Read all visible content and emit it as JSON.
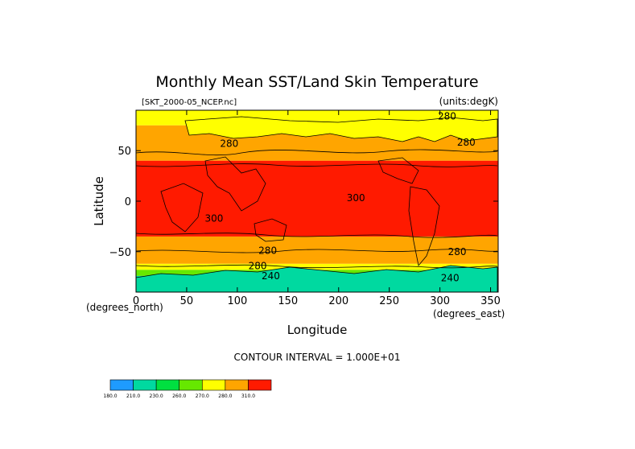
{
  "chart_data": {
    "type": "heatmap",
    "title": "Monthly Mean SST/Land Skin Temperature",
    "subtitle_left": "[SKT_2000-05_NCEP.nc]",
    "subtitle_right": "(units:degK)",
    "xlabel": "Longitude",
    "ylabel": "Latitude",
    "x_units": "(degrees_east)",
    "y_units": "(degrees_north)",
    "xlim": [
      0,
      357.5
    ],
    "ylim": [
      -90,
      90
    ],
    "x_ticks": [
      0,
      50,
      100,
      150,
      200,
      250,
      300,
      350
    ],
    "y_ticks": [
      -50,
      0,
      50
    ],
    "footer": "CONTOUR INTERVAL = 1.000E+01",
    "contour_labels": [
      {
        "text": "280",
        "x": 307,
        "y": 84
      },
      {
        "text": "280",
        "x": 326,
        "y": 58
      },
      {
        "text": "280",
        "x": 92,
        "y": 57
      },
      {
        "text": "300",
        "x": 217,
        "y": 3
      },
      {
        "text": "300",
        "x": 77,
        "y": -17
      },
      {
        "text": "280",
        "x": 130,
        "y": -49
      },
      {
        "text": "280",
        "x": 317,
        "y": -50
      },
      {
        "text": "280",
        "x": 120,
        "y": -64
      },
      {
        "text": "240",
        "x": 133,
        "y": -74
      },
      {
        "text": "240",
        "x": 310,
        "y": -76
      }
    ],
    "bands": [
      {
        "lat_from": 90,
        "lat_to": 75,
        "level": 270
      },
      {
        "lat_from": 75,
        "lat_to": 40,
        "level": 280
      },
      {
        "lat_from": 40,
        "lat_to": -35,
        "level": 290
      },
      {
        "lat_from": -35,
        "lat_to": -62,
        "level": 280
      },
      {
        "lat_from": -62,
        "lat_to": -68,
        "level": 270
      },
      {
        "lat_from": -68,
        "lat_to": -74,
        "level": 250
      },
      {
        "lat_from": -74,
        "lat_to": -90,
        "level": 230
      }
    ],
    "colorbar": {
      "colors": [
        "#1e9bff",
        "#00d9a0",
        "#00e040",
        "#66e800",
        "#ffff00",
        "#ffa500",
        "#ff1a00"
      ],
      "ticks": [
        "180.0",
        "210.0",
        "230.0",
        "260.0",
        "270.0",
        "280.0",
        "310.0"
      ]
    },
    "level_colors": {
      "220": "#1e9bff",
      "230": "#00d9a0",
      "240": "#00e040",
      "250": "#66e800",
      "270": "#ffff00",
      "280": "#ffa500",
      "290": "#ff1a00"
    }
  }
}
